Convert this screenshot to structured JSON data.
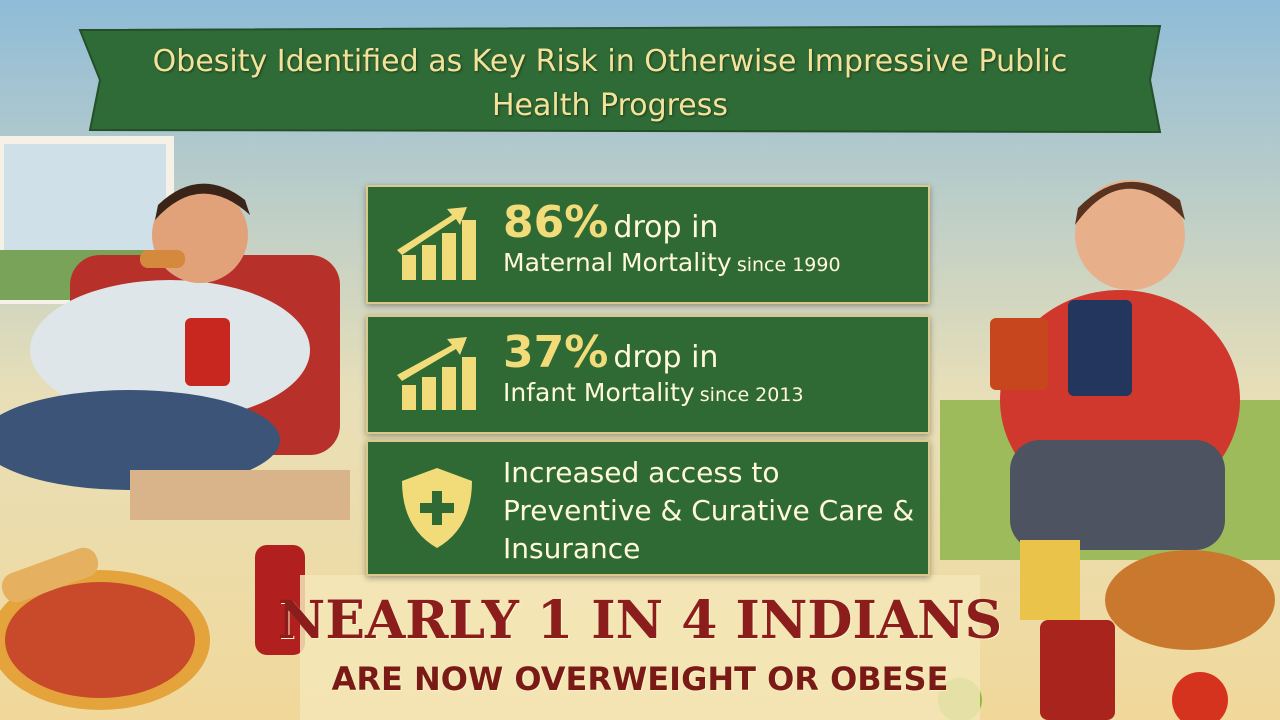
{
  "header": {
    "title": "Obesity Identified as Key Risk in Otherwise Impressive Public Health Progress"
  },
  "stats": [
    {
      "value": "86%",
      "change": "drop in",
      "subject": "Maternal Mortality",
      "since": "since 1990"
    },
    {
      "value": "37%",
      "change": "drop in",
      "subject": "Infant Mortality",
      "since": "since 2013"
    },
    {
      "text": "Increased access to Preventive & Curative Care & Insurance"
    }
  ],
  "headline": {
    "line1": "NEARLY 1 IN 4 INDIANS",
    "line2": "ARE NOW OVERWEIGHT OR OBESE"
  }
}
